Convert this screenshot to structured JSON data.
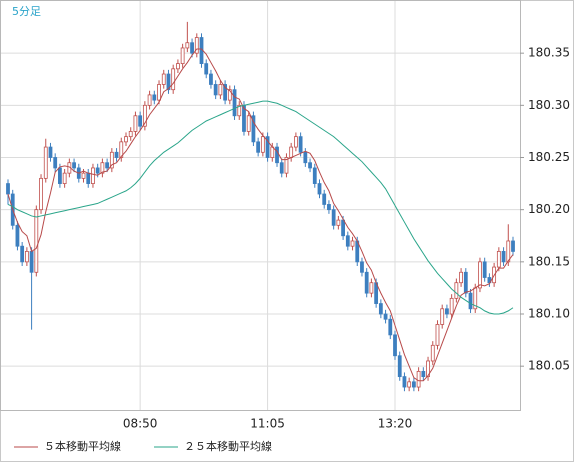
{
  "chart_data": {
    "type": "candlestick",
    "title": "5分足",
    "categories": [
      null,
      null,
      null,
      null,
      null,
      null,
      null,
      null,
      null,
      null,
      null,
      null,
      null,
      null,
      null,
      null,
      null,
      null,
      null,
      null,
      null,
      null,
      null,
      null,
      null,
      null,
      null,
      null,
      "08:50",
      null,
      null,
      null,
      null,
      null,
      null,
      null,
      null,
      null,
      null,
      null,
      null,
      null,
      null,
      null,
      null,
      null,
      null,
      null,
      null,
      null,
      null,
      null,
      null,
      null,
      null,
      "11:05",
      null,
      null,
      null,
      null,
      null,
      null,
      null,
      null,
      null,
      null,
      null,
      null,
      null,
      null,
      null,
      null,
      null,
      null,
      null,
      null,
      null,
      null,
      null,
      null,
      null,
      null,
      "13:20",
      null,
      null,
      null,
      null,
      null,
      null,
      null,
      null,
      null,
      null,
      null,
      null,
      null,
      null,
      null,
      null,
      null,
      null,
      null,
      null,
      null,
      null,
      null,
      null,
      null
    ],
    "open": [
      180.225,
      180.215,
      180.185,
      180.165,
      180.15,
      180.16,
      180.14,
      180.2,
      180.23,
      180.26,
      180.25,
      180.24,
      180.225,
      180.235,
      180.245,
      180.24,
      180.23,
      180.235,
      180.225,
      180.24,
      180.235,
      180.245,
      180.24,
      180.255,
      180.25,
      180.265,
      180.27,
      180.275,
      180.29,
      180.28,
      180.3,
      180.31,
      180.305,
      180.32,
      180.33,
      180.315,
      180.335,
      180.34,
      180.355,
      180.36,
      180.35,
      180.365,
      180.34,
      180.33,
      180.32,
      180.31,
      180.32,
      180.305,
      180.315,
      180.29,
      180.3,
      180.275,
      180.29,
      180.265,
      180.255,
      180.27,
      180.25,
      180.26,
      180.245,
      180.235,
      180.25,
      180.26,
      180.27,
      180.255,
      180.245,
      180.24,
      180.225,
      180.215,
      180.205,
      180.2,
      180.185,
      180.19,
      180.175,
      180.165,
      180.17,
      180.15,
      180.14,
      180.12,
      180.13,
      180.11,
      180.1,
      180.095,
      180.08,
      180.06,
      180.04,
      180.03,
      180.035,
      180.03,
      180.045,
      180.04,
      180.055,
      180.07,
      180.09,
      180.105,
      180.1,
      180.115,
      180.13,
      180.14,
      180.12,
      180.105,
      180.125,
      180.15,
      180.135,
      180.13,
      180.145,
      180.16,
      180.15,
      180.17
    ],
    "high": [
      180.229,
      180.219,
      180.189,
      180.169,
      180.164,
      180.164,
      180.204,
      180.234,
      180.268,
      180.264,
      180.254,
      180.244,
      180.239,
      180.249,
      180.249,
      180.244,
      180.239,
      180.239,
      180.244,
      180.244,
      180.249,
      180.249,
      180.259,
      180.259,
      180.269,
      180.274,
      180.279,
      180.294,
      180.294,
      180.304,
      180.314,
      180.314,
      180.324,
      180.334,
      180.334,
      180.339,
      180.344,
      180.359,
      180.38,
      180.364,
      180.369,
      180.369,
      180.344,
      180.334,
      180.324,
      180.324,
      180.324,
      180.319,
      180.319,
      180.304,
      180.304,
      180.294,
      180.294,
      180.269,
      180.274,
      180.274,
      180.264,
      180.264,
      180.249,
      180.254,
      180.264,
      180.274,
      180.274,
      180.259,
      180.249,
      180.244,
      180.229,
      180.219,
      180.209,
      180.204,
      180.194,
      180.194,
      180.179,
      180.174,
      180.174,
      180.154,
      180.144,
      180.134,
      180.134,
      180.114,
      180.104,
      180.099,
      180.084,
      180.064,
      180.044,
      180.039,
      180.039,
      180.049,
      180.049,
      180.059,
      180.074,
      180.094,
      180.109,
      180.109,
      180.119,
      180.134,
      180.144,
      180.144,
      180.124,
      180.129,
      180.154,
      180.154,
      180.139,
      180.149,
      180.164,
      180.164,
      180.186,
      180.174
    ],
    "low": [
      180.205,
      180.181,
      180.161,
      180.146,
      180.146,
      180.085,
      180.136,
      180.196,
      180.226,
      180.246,
      180.236,
      180.221,
      180.221,
      180.231,
      180.236,
      180.226,
      180.226,
      180.221,
      180.221,
      180.231,
      180.231,
      180.236,
      180.236,
      180.246,
      180.246,
      180.261,
      180.266,
      180.271,
      180.276,
      180.276,
      180.296,
      180.301,
      180.301,
      180.316,
      180.311,
      180.311,
      180.331,
      180.336,
      180.351,
      180.346,
      180.346,
      180.336,
      180.326,
      180.316,
      180.306,
      180.306,
      180.301,
      180.301,
      180.286,
      180.286,
      180.271,
      180.271,
      180.261,
      180.251,
      180.251,
      180.246,
      180.246,
      180.241,
      180.231,
      180.231,
      180.246,
      180.256,
      180.251,
      180.241,
      180.236,
      180.221,
      180.211,
      180.201,
      180.196,
      180.181,
      180.181,
      180.171,
      180.161,
      180.161,
      180.146,
      180.136,
      180.116,
      180.116,
      180.106,
      180.096,
      180.091,
      180.076,
      180.056,
      180.036,
      180.026,
      180.026,
      180.026,
      180.026,
      180.036,
      180.036,
      180.051,
      180.066,
      180.086,
      180.096,
      180.096,
      180.111,
      180.126,
      180.116,
      180.101,
      180.101,
      180.121,
      180.131,
      180.126,
      180.126,
      180.141,
      180.146,
      180.146,
      180.156
    ],
    "close": [
      180.215,
      180.185,
      180.165,
      180.15,
      180.16,
      180.14,
      180.2,
      180.23,
      180.26,
      180.25,
      180.24,
      180.225,
      180.235,
      180.245,
      180.24,
      180.23,
      180.235,
      180.225,
      180.24,
      180.235,
      180.245,
      180.24,
      180.255,
      180.25,
      180.265,
      180.27,
      180.275,
      180.29,
      180.28,
      180.3,
      180.31,
      180.305,
      180.32,
      180.33,
      180.315,
      180.335,
      180.34,
      180.355,
      180.36,
      180.35,
      180.365,
      180.34,
      180.33,
      180.32,
      180.31,
      180.32,
      180.305,
      180.315,
      180.29,
      180.3,
      180.275,
      180.29,
      180.265,
      180.255,
      180.27,
      180.25,
      180.26,
      180.245,
      180.235,
      180.25,
      180.26,
      180.27,
      180.255,
      180.245,
      180.24,
      180.225,
      180.215,
      180.205,
      180.2,
      180.185,
      180.19,
      180.175,
      180.165,
      180.17,
      180.15,
      180.14,
      180.12,
      180.13,
      180.11,
      180.1,
      180.095,
      180.08,
      180.06,
      180.04,
      180.03,
      180.035,
      180.03,
      180.045,
      180.04,
      180.055,
      180.07,
      180.09,
      180.105,
      180.1,
      180.115,
      180.13,
      180.14,
      180.12,
      180.105,
      180.125,
      180.15,
      180.135,
      180.13,
      180.145,
      180.16,
      180.15,
      180.17,
      180.16
    ],
    "up_color": "#c0504d",
    "down_color": "#3d7fbf",
    "series": [
      {
        "name": "５本移動平均線",
        "color": "#b84a4a",
        "values": [
          180.215,
          180.2,
          180.188,
          180.179,
          180.175,
          180.16,
          180.163,
          180.176,
          180.198,
          180.216,
          180.236,
          180.241,
          180.242,
          180.241,
          180.237,
          180.235,
          180.237,
          180.235,
          180.234,
          180.233,
          180.236,
          180.237,
          180.243,
          180.245,
          180.251,
          180.256,
          180.263,
          180.27,
          180.276,
          180.283,
          180.291,
          180.297,
          180.303,
          180.313,
          180.316,
          180.321,
          180.328,
          180.335,
          180.341,
          180.348,
          180.354,
          180.354,
          180.349,
          180.341,
          180.333,
          180.324,
          180.317,
          180.314,
          180.308,
          180.306,
          180.297,
          180.294,
          180.284,
          180.277,
          180.271,
          180.266,
          180.26,
          180.256,
          180.248,
          180.248,
          180.25,
          180.252,
          180.254,
          180.256,
          180.254,
          180.247,
          180.236,
          180.226,
          180.218,
          180.206,
          180.199,
          180.191,
          180.183,
          180.177,
          180.17,
          180.16,
          180.149,
          180.142,
          180.13,
          180.12,
          180.111,
          180.103,
          180.089,
          180.075,
          180.061,
          180.05,
          180.039,
          180.036,
          180.036,
          180.041,
          180.048,
          180.06,
          180.072,
          180.084,
          180.096,
          180.108,
          180.118,
          180.121,
          180.122,
          180.125,
          180.128,
          180.127,
          180.129,
          180.137,
          180.144,
          180.144,
          180.151,
          180.157
        ]
      },
      {
        "name": "２５本移動平均線",
        "color": "#2aa58a",
        "values": [
          180.205,
          180.203,
          180.2,
          180.198,
          180.196,
          180.194,
          180.193,
          180.194,
          180.195,
          180.196,
          180.197,
          180.198,
          180.199,
          180.2,
          180.201,
          180.202,
          180.203,
          180.204,
          180.205,
          180.206,
          180.208,
          180.21,
          180.212,
          180.214,
          180.216,
          180.218,
          180.221,
          180.225,
          180.23,
          180.236,
          180.242,
          180.247,
          180.251,
          180.255,
          180.258,
          180.261,
          180.264,
          180.268,
          180.272,
          180.276,
          180.279,
          180.282,
          180.285,
          180.287,
          180.289,
          180.291,
          180.293,
          180.295,
          180.297,
          180.299,
          180.3,
          180.301,
          180.302,
          180.303,
          180.304,
          180.304,
          180.303,
          180.302,
          180.3,
          180.298,
          180.296,
          180.294,
          180.291,
          180.288,
          180.285,
          180.282,
          180.279,
          180.276,
          180.273,
          180.27,
          180.266,
          180.262,
          180.258,
          180.254,
          180.25,
          180.246,
          180.241,
          180.236,
          180.231,
          180.226,
          180.22,
          180.212,
          180.204,
          180.196,
          180.188,
          180.18,
          180.172,
          180.165,
          180.158,
          180.151,
          180.145,
          180.139,
          180.134,
          180.129,
          180.124,
          180.12,
          180.116,
          180.113,
          180.11,
          180.108,
          180.106,
          180.103,
          180.101,
          180.1,
          180.1,
          180.101,
          180.103,
          180.106
        ]
      }
    ],
    "ylim": [
      180.008,
      180.4
    ],
    "yticks": [
      {
        "value": 180.05,
        "label": "180.05"
      },
      {
        "value": 180.1,
        "label": "180.10"
      },
      {
        "value": 180.15,
        "label": "180.15"
      },
      {
        "value": 180.2,
        "label": "180.20"
      },
      {
        "value": 180.25,
        "label": "180.25"
      },
      {
        "value": 180.3,
        "label": "180.30"
      },
      {
        "value": 180.35,
        "label": "180.35"
      }
    ],
    "grid": true
  }
}
